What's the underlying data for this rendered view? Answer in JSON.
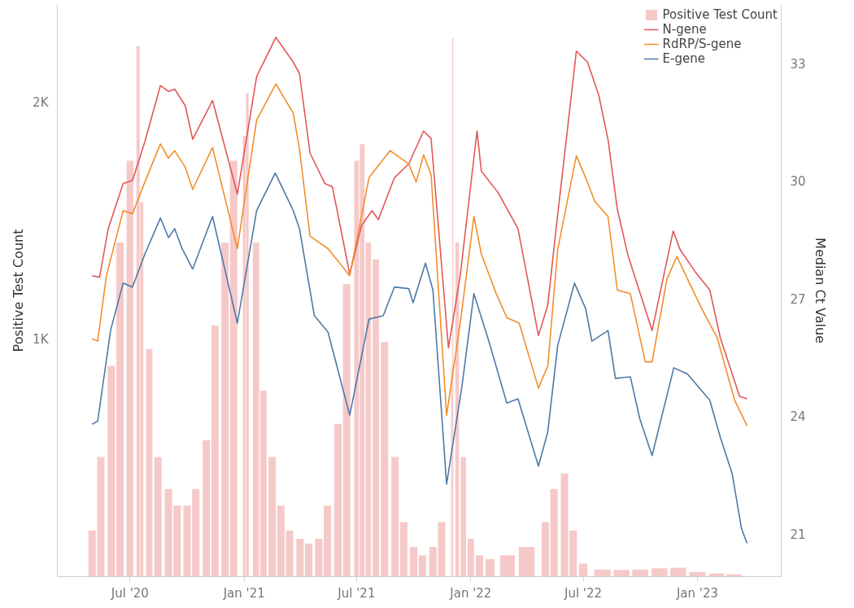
{
  "chart_data": {
    "type": "line",
    "ylabel": "Positive Test Count",
    "y2label": "Median Ct Value",
    "xlim": [
      "2020-03-06",
      "2023-05-16"
    ],
    "xticks": [
      {
        "value": "2020-07-01",
        "label": "Jul '20"
      },
      {
        "value": "2021-01-01",
        "label": "Jan '21"
      },
      {
        "value": "2021-07-01",
        "label": "Jul '21"
      },
      {
        "value": "2022-01-01",
        "label": "Jan '22"
      },
      {
        "value": "2022-07-01",
        "label": "Jul '22"
      },
      {
        "value": "2023-01-01",
        "label": "Jan '23"
      }
    ],
    "ylim": [
      0,
      2415
    ],
    "yticks": [
      {
        "value": 1000,
        "label": "1K"
      },
      {
        "value": 2000,
        "label": "2K"
      }
    ],
    "y2lim": [
      19.9,
      34.5
    ],
    "y2ticks": [
      21,
      24,
      27,
      30,
      33
    ],
    "grid": false,
    "legend": "top right",
    "marker": "none",
    "line_style": "solid",
    "series": [
      {
        "name": "Positive Test Count",
        "type": "bar",
        "axis": "y",
        "color": "#f6c9c9",
        "x": [
          "2020-05-01",
          "2020-05-15",
          "2020-06-01",
          "2020-06-15",
          "2020-07-01",
          "2020-07-14",
          "2020-07-20",
          "2020-08-01",
          "2020-08-15",
          "2020-09-01",
          "2020-09-15",
          "2020-10-01",
          "2020-10-15",
          "2020-11-01",
          "2020-11-15",
          "2020-12-01",
          "2020-12-15",
          "2021-01-01",
          "2021-01-06",
          "2021-01-20",
          "2021-02-01",
          "2021-02-15",
          "2021-03-01",
          "2021-03-15",
          "2021-04-01",
          "2021-04-15",
          "2021-05-01",
          "2021-05-15",
          "2021-06-01",
          "2021-06-15",
          "2021-07-01",
          "2021-07-10",
          "2021-07-20",
          "2021-08-01",
          "2021-08-15",
          "2021-09-01",
          "2021-09-15",
          "2021-10-01",
          "2021-10-15",
          "2021-11-01",
          "2021-11-15",
          "2021-12-01",
          "2021-12-03",
          "2021-12-10",
          "2021-12-20",
          "2022-01-01",
          "2022-01-15",
          "2022-02-01",
          "2022-03-01",
          "2022-04-01",
          "2022-05-01",
          "2022-05-15",
          "2022-06-01",
          "2022-06-15",
          "2022-07-01",
          "2022-08-01",
          "2022-09-01",
          "2022-10-01",
          "2022-11-01",
          "2022-12-01",
          "2023-01-01",
          "2023-02-01",
          "2023-03-01"
        ],
        "values": [
          195,
          505,
          890,
          1410,
          1755,
          2240,
          1580,
          960,
          505,
          370,
          300,
          300,
          370,
          575,
          1060,
          1410,
          1755,
          1860,
          2040,
          1410,
          785,
          505,
          300,
          195,
          160,
          140,
          160,
          300,
          645,
          1235,
          1755,
          1825,
          1410,
          1340,
          990,
          505,
          230,
          125,
          90,
          125,
          230,
          890,
          2275,
          1410,
          505,
          160,
          90,
          75,
          90,
          125,
          230,
          370,
          435,
          195,
          55,
          30,
          28,
          30,
          35,
          38,
          20,
          14,
          10
        ]
      },
      {
        "name": "N-gene",
        "axis": "y2",
        "color": "#e15759",
        "x": [
          "2020-05-01",
          "2020-05-13",
          "2020-05-27",
          "2020-06-20",
          "2020-07-05",
          "2020-07-25",
          "2020-08-19",
          "2020-09-01",
          "2020-09-11",
          "2020-09-28",
          "2020-10-10",
          "2020-11-11",
          "2020-12-21",
          "2021-01-21",
          "2021-02-21",
          "2021-03-21",
          "2021-03-31",
          "2021-04-17",
          "2021-05-11",
          "2021-05-23",
          "2021-06-20",
          "2021-07-09",
          "2021-07-26",
          "2021-08-05",
          "2021-08-31",
          "2021-09-23",
          "2021-10-17",
          "2021-10-29",
          "2021-11-26",
          "2021-12-15",
          "2022-01-11",
          "2022-01-18",
          "2022-02-14",
          "2022-03-18",
          "2022-04-20",
          "2022-05-05",
          "2022-05-16",
          "2022-06-20",
          "2022-07-08",
          "2022-07-26",
          "2022-08-10",
          "2022-08-25",
          "2022-09-11",
          "2022-10-20",
          "2022-11-23",
          "2022-12-04",
          "2022-12-28",
          "2023-01-21",
          "2023-02-07",
          "2023-03-10",
          "2023-03-22"
        ],
        "values": [
          27.58,
          27.54,
          28.78,
          29.93,
          30.01,
          31.0,
          32.43,
          32.28,
          32.34,
          31.92,
          31.06,
          32.05,
          29.66,
          32.66,
          33.66,
          33.03,
          32.74,
          30.71,
          29.93,
          29.85,
          27.62,
          28.86,
          29.24,
          29.01,
          30.08,
          30.43,
          31.27,
          31.08,
          25.74,
          27.58,
          31.27,
          30.25,
          29.7,
          28.78,
          26.05,
          26.83,
          28.44,
          33.31,
          33.03,
          32.19,
          31.06,
          29.28,
          28.11,
          26.18,
          28.72,
          28.25,
          27.69,
          27.21,
          25.99,
          24.5,
          24.44
        ]
      },
      {
        "name": "RdRP/S-gene",
        "axis": "y2",
        "color": "#f28e2b",
        "x": [
          "2020-05-01",
          "2020-05-10",
          "2020-05-24",
          "2020-06-20",
          "2020-07-05",
          "2020-07-25",
          "2020-08-19",
          "2020-09-01",
          "2020-09-11",
          "2020-09-28",
          "2020-10-10",
          "2020-11-11",
          "2020-12-21",
          "2021-01-21",
          "2021-02-21",
          "2021-03-21",
          "2021-03-31",
          "2021-04-17",
          "2021-05-16",
          "2021-06-20",
          "2021-07-21",
          "2021-08-24",
          "2021-09-23",
          "2021-10-05",
          "2021-10-17",
          "2021-10-29",
          "2021-11-23",
          "2021-12-15",
          "2022-01-06",
          "2022-01-18",
          "2022-02-11",
          "2022-02-28",
          "2022-03-20",
          "2022-04-20",
          "2022-05-05",
          "2022-05-21",
          "2022-06-20",
          "2022-07-05",
          "2022-07-20",
          "2022-08-10",
          "2022-08-25",
          "2022-09-15",
          "2022-10-09",
          "2022-10-20",
          "2022-11-13",
          "2022-11-29",
          "2022-12-16",
          "2023-01-08",
          "2023-02-02",
          "2023-03-02",
          "2023-03-22"
        ],
        "values": [
          25.97,
          25.91,
          27.58,
          29.24,
          29.16,
          29.97,
          30.94,
          30.58,
          30.77,
          30.35,
          29.78,
          30.85,
          28.27,
          31.55,
          32.47,
          31.73,
          30.81,
          28.59,
          28.27,
          27.58,
          30.08,
          30.77,
          30.43,
          29.97,
          30.66,
          30.16,
          24.02,
          26.37,
          29.09,
          28.13,
          27.12,
          26.51,
          26.37,
          24.71,
          25.28,
          28.25,
          30.64,
          30.08,
          29.47,
          29.09,
          27.21,
          27.12,
          25.38,
          25.38,
          27.5,
          28.07,
          27.5,
          26.74,
          25.99,
          24.4,
          23.75
        ]
      },
      {
        "name": "E-gene",
        "axis": "y2",
        "color": "#4e79a7",
        "x": [
          "2020-05-01",
          "2020-05-10",
          "2020-05-31",
          "2020-06-20",
          "2020-07-05",
          "2020-07-25",
          "2020-08-19",
          "2020-09-01",
          "2020-09-11",
          "2020-09-23",
          "2020-10-10",
          "2020-11-11",
          "2020-12-21",
          "2021-01-21",
          "2021-02-20",
          "2021-03-21",
          "2021-03-31",
          "2021-04-24",
          "2021-05-16",
          "2021-06-20",
          "2021-07-21",
          "2021-08-13",
          "2021-08-31",
          "2021-09-23",
          "2021-09-30",
          "2021-10-20",
          "2021-11-01",
          "2021-11-23",
          "2021-12-18",
          "2022-01-06",
          "2022-01-30",
          "2022-02-28",
          "2022-03-18",
          "2022-04-20",
          "2022-05-05",
          "2022-05-21",
          "2022-06-17",
          "2022-07-05",
          "2022-07-15",
          "2022-08-10",
          "2022-08-22",
          "2022-09-15",
          "2022-09-30",
          "2022-10-20",
          "2022-11-24",
          "2022-12-16",
          "2023-01-21",
          "2023-02-07",
          "2023-02-26",
          "2023-03-13",
          "2023-03-22"
        ],
        "values": [
          23.79,
          23.87,
          26.2,
          27.39,
          27.29,
          28.13,
          29.05,
          28.55,
          28.78,
          28.27,
          27.75,
          29.09,
          26.37,
          29.24,
          30.2,
          29.24,
          28.78,
          26.56,
          26.14,
          24.02,
          26.47,
          26.56,
          27.29,
          27.25,
          26.89,
          27.9,
          27.21,
          22.26,
          24.79,
          27.12,
          25.91,
          24.33,
          24.44,
          22.72,
          23.6,
          25.8,
          27.39,
          26.74,
          25.91,
          26.18,
          24.96,
          25.0,
          23.94,
          22.99,
          25.23,
          25.07,
          24.4,
          23.45,
          22.53,
          21.13,
          20.75
        ]
      }
    ]
  }
}
